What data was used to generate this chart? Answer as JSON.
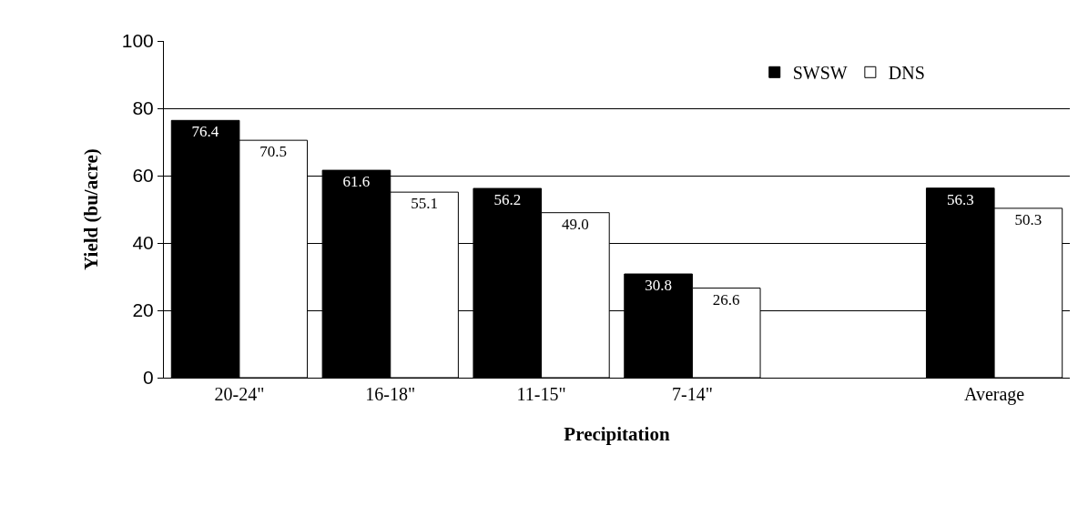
{
  "chart_data": {
    "type": "bar",
    "xlabel": "Precipitation",
    "ylabel": "Yield (bu/acre)",
    "categories": [
      "20-24\"",
      "16-18\"",
      "11-15\"",
      "7-14\"",
      null,
      "Average"
    ],
    "series": [
      {
        "name": "SWSW",
        "color": "#000000",
        "values": [
          76.4,
          61.6,
          56.2,
          30.8,
          null,
          56.3
        ],
        "value_labels": [
          "76.4",
          "61.6",
          "56.2",
          "30.8",
          null,
          "56.3"
        ]
      },
      {
        "name": "DNS",
        "color": "#ffffff",
        "values": [
          70.5,
          55.1,
          49.0,
          26.6,
          null,
          50.3
        ],
        "value_labels": [
          "70.5",
          "55.1",
          "49.0",
          "26.6",
          null,
          "50.3"
        ]
      }
    ],
    "ylim": [
      0,
      100
    ],
    "yticks": [
      0,
      20,
      40,
      60,
      80,
      100
    ],
    "grid": "y",
    "legend": "top right"
  }
}
